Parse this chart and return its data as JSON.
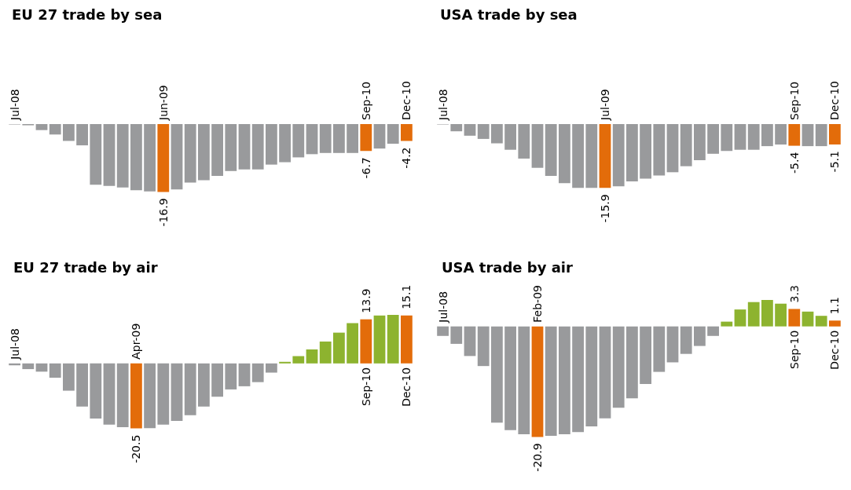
{
  "chart_data": [
    {
      "type": "bar",
      "title": "EU 27 trade by sea",
      "tick_labels": "x",
      "categories": [
        "Jul-08",
        null,
        null,
        null,
        null,
        null,
        null,
        null,
        null,
        null,
        null,
        "Jun-09",
        null,
        null,
        null,
        null,
        null,
        null,
        null,
        null,
        null,
        null,
        null,
        null,
        null,
        null,
        "Sep-10",
        null,
        null,
        "Dec-10"
      ],
      "values": [
        -0.1,
        -0.3,
        -1.5,
        -2.6,
        -4.2,
        -5.3,
        -15.1,
        -15.4,
        -15.8,
        -16.5,
        -16.8,
        -16.9,
        -16.3,
        -14.6,
        -14.0,
        -12.9,
        -11.7,
        -11.3,
        -11.3,
        -10.1,
        -9.5,
        -8.3,
        -7.5,
        -7.2,
        -7.2,
        -7.2,
        -6.7,
        -6.1,
        -4.9,
        -4.2
      ],
      "colors": [
        "#999a9c",
        "#999a9c",
        "#999a9c",
        "#999a9c",
        "#999a9c",
        "#999a9c",
        "#999a9c",
        "#999a9c",
        "#999a9c",
        "#999a9c",
        "#999a9c",
        "#e36c0a",
        "#999a9c",
        "#999a9c",
        "#999a9c",
        "#999a9c",
        "#999a9c",
        "#999a9c",
        "#999a9c",
        "#999a9c",
        "#999a9c",
        "#999a9c",
        "#999a9c",
        "#999a9c",
        "#999a9c",
        "#999a9c",
        "#e36c0a",
        "#999a9c",
        "#999a9c",
        "#e36c0a"
      ],
      "value_labels": [
        null,
        null,
        null,
        null,
        null,
        null,
        null,
        null,
        null,
        null,
        null,
        "-16.9",
        null,
        null,
        null,
        null,
        null,
        null,
        null,
        null,
        null,
        null,
        null,
        null,
        null,
        null,
        "-6.7",
        null,
        null,
        "-4.2"
      ]
    },
    {
      "type": "bar",
      "title": "USA trade by sea",
      "tick_labels": "x",
      "categories": [
        "Jul-08",
        null,
        null,
        null,
        null,
        null,
        null,
        null,
        null,
        null,
        null,
        null,
        "Jul-09",
        null,
        null,
        null,
        null,
        null,
        null,
        null,
        null,
        null,
        null,
        null,
        null,
        null,
        "Sep-10",
        null,
        null,
        "Dec-10"
      ],
      "values": [
        -0.1,
        -1.8,
        -2.9,
        -3.7,
        -4.8,
        -6.4,
        -8.6,
        -10.9,
        -12.9,
        -14.7,
        -15.9,
        -15.9,
        -15.9,
        -15.5,
        -14.3,
        -13.6,
        -12.8,
        -12.0,
        -10.5,
        -9.0,
        -7.4,
        -6.7,
        -6.4,
        -6.4,
        -5.5,
        -5.1,
        -5.4,
        -5.5,
        -5.5,
        -5.1
      ],
      "colors": [
        "#999a9c",
        "#999a9c",
        "#999a9c",
        "#999a9c",
        "#999a9c",
        "#999a9c",
        "#999a9c",
        "#999a9c",
        "#999a9c",
        "#999a9c",
        "#999a9c",
        "#999a9c",
        "#e36c0a",
        "#999a9c",
        "#999a9c",
        "#999a9c",
        "#999a9c",
        "#999a9c",
        "#999a9c",
        "#999a9c",
        "#999a9c",
        "#999a9c",
        "#999a9c",
        "#999a9c",
        "#999a9c",
        "#999a9c",
        "#e36c0a",
        "#999a9c",
        "#999a9c",
        "#e36c0a"
      ],
      "value_labels": [
        null,
        null,
        null,
        null,
        null,
        null,
        null,
        null,
        null,
        null,
        null,
        null,
        "-15.9",
        null,
        null,
        null,
        null,
        null,
        null,
        null,
        null,
        null,
        null,
        null,
        null,
        null,
        "-5.4",
        null,
        null,
        "-5.1"
      ]
    },
    {
      "type": "bar",
      "title": "EU 27 trade by air",
      "tick_labels": "x",
      "categories": [
        "Jul-08",
        null,
        null,
        null,
        null,
        null,
        null,
        null,
        null,
        "Apr-09",
        null,
        null,
        null,
        null,
        null,
        null,
        null,
        null,
        null,
        null,
        null,
        null,
        null,
        null,
        null,
        null,
        "Sep-10",
        null,
        null,
        "Dec-10"
      ],
      "values": [
        -0.6,
        -1.8,
        -2.6,
        -4.5,
        -8.6,
        -13.6,
        -17.4,
        -19.3,
        -20.1,
        -20.5,
        -20.4,
        -19.3,
        -18.1,
        -16.3,
        -13.6,
        -10.5,
        -8.2,
        -7.2,
        -5.9,
        -2.9,
        0.5,
        2.3,
        4.4,
        6.9,
        9.7,
        12.7,
        13.9,
        15.1,
        15.3,
        15.1
      ],
      "colors": [
        "#999a9c",
        "#999a9c",
        "#999a9c",
        "#999a9c",
        "#999a9c",
        "#999a9c",
        "#999a9c",
        "#999a9c",
        "#999a9c",
        "#e36c0a",
        "#999a9c",
        "#999a9c",
        "#999a9c",
        "#999a9c",
        "#999a9c",
        "#999a9c",
        "#999a9c",
        "#999a9c",
        "#999a9c",
        "#999a9c",
        "#8db32f",
        "#8db32f",
        "#8db32f",
        "#8db32f",
        "#8db32f",
        "#8db32f",
        "#e36c0a",
        "#8db32f",
        "#8db32f",
        "#e36c0a"
      ],
      "value_labels": [
        null,
        null,
        null,
        null,
        null,
        null,
        null,
        null,
        null,
        "-20.5",
        null,
        null,
        null,
        null,
        null,
        null,
        null,
        null,
        null,
        null,
        null,
        null,
        null,
        null,
        null,
        null,
        "13.9",
        null,
        null,
        "15.1"
      ]
    },
    {
      "type": "bar",
      "title": "USA trade by air",
      "tick_labels": "x",
      "categories": [
        "Jul-08",
        null,
        null,
        null,
        null,
        null,
        null,
        "Feb-09",
        null,
        null,
        null,
        null,
        null,
        null,
        null,
        null,
        null,
        null,
        null,
        null,
        null,
        null,
        null,
        null,
        null,
        null,
        "Sep-10",
        null,
        null,
        "Dec-10"
      ],
      "values": [
        -1.8,
        -3.3,
        -5.6,
        -7.5,
        -18.2,
        -19.6,
        -20.4,
        -20.9,
        -20.7,
        -20.4,
        -20.0,
        -18.9,
        -17.4,
        -15.4,
        -13.6,
        -10.9,
        -8.6,
        -6.8,
        -5.2,
        -3.7,
        -1.8,
        0.9,
        3.2,
        4.6,
        5.0,
        4.3,
        3.3,
        2.8,
        2.0,
        1.1
      ],
      "colors": [
        "#999a9c",
        "#999a9c",
        "#999a9c",
        "#999a9c",
        "#999a9c",
        "#999a9c",
        "#999a9c",
        "#e36c0a",
        "#999a9c",
        "#999a9c",
        "#999a9c",
        "#999a9c",
        "#999a9c",
        "#999a9c",
        "#999a9c",
        "#999a9c",
        "#999a9c",
        "#999a9c",
        "#999a9c",
        "#999a9c",
        "#999a9c",
        "#8db32f",
        "#8db32f",
        "#8db32f",
        "#8db32f",
        "#8db32f",
        "#e36c0a",
        "#8db32f",
        "#8db32f",
        "#e36c0a"
      ],
      "value_labels": [
        null,
        null,
        null,
        null,
        null,
        null,
        null,
        "-20.9",
        null,
        null,
        null,
        null,
        null,
        null,
        null,
        null,
        null,
        null,
        null,
        null,
        null,
        null,
        null,
        null,
        null,
        null,
        "3.3",
        null,
        null,
        "1.1"
      ]
    }
  ]
}
